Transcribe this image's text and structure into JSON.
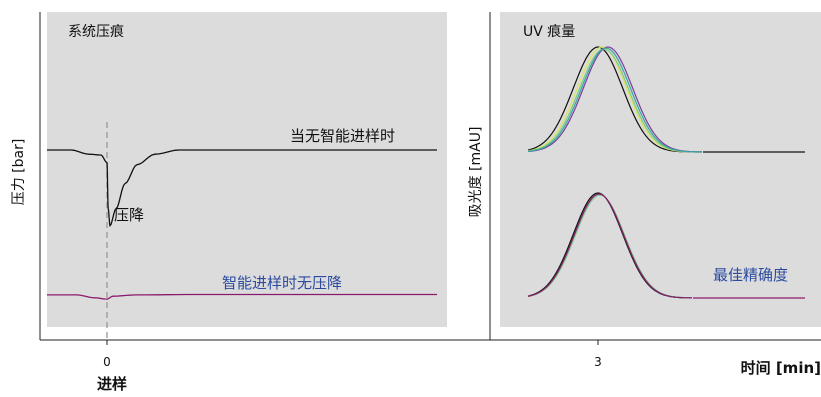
{
  "colors": {
    "panel_bg": "#dcdcdc",
    "axis": "#222222",
    "trace_black": "#111111",
    "trace_purple": "#8b1a6e",
    "annotation_blue": "#2b4aa0",
    "dashed_line": "#999999",
    "overlay_green": "#2f9a6a",
    "overlay_yellow": "#d9e65a",
    "overlay_violet": "#7b3fa0",
    "overlay_lightgreen": "#7fc98a",
    "overlay_teal": "#3aa6a0"
  },
  "chart_data": [
    {
      "type": "line",
      "title": "系统压痕",
      "ylabel": "压力 [bar]",
      "xlabel": "进样",
      "x_ticks": [
        "0"
      ],
      "series": [
        {
          "name": "当无智能进样时",
          "color": "#111111",
          "points": [
            [
              -1.0,
              0
            ],
            [
              -0.6,
              0
            ],
            [
              -0.3,
              -0.1
            ],
            [
              -0.1,
              -0.12
            ],
            [
              0.0,
              -0.3
            ],
            [
              0.02,
              -1.4
            ],
            [
              0.05,
              -1.8
            ],
            [
              0.15,
              -1.4
            ],
            [
              0.3,
              -0.8
            ],
            [
              0.5,
              -0.35
            ],
            [
              0.8,
              -0.1
            ],
            [
              1.2,
              0
            ],
            [
              5.5,
              0
            ]
          ]
        },
        {
          "name": "智能进样时无压降",
          "color": "#8b1a6e",
          "points": [
            [
              -1.0,
              -3.45
            ],
            [
              -0.5,
              -3.45
            ],
            [
              -0.2,
              -3.52
            ],
            [
              0.0,
              -3.55
            ],
            [
              0.1,
              -3.48
            ],
            [
              0.5,
              -3.45
            ],
            [
              1.5,
              -3.44
            ],
            [
              5.5,
              -3.44
            ]
          ]
        }
      ],
      "annotations": [
        {
          "text": "当无智能进样时"
        },
        {
          "text": "压降"
        },
        {
          "text": "智能进样时无压降"
        }
      ]
    },
    {
      "type": "line",
      "title": "UV 痕量",
      "ylabel": "吸光度 [mAU]",
      "xlabel": "时间 [min]",
      "x_ticks": [
        "3"
      ],
      "groups": [
        {
          "label": "",
          "overlays": [
            {
              "color": "#111111",
              "center": 3.0,
              "width": 0.35,
              "height": 1.0
            },
            {
              "color": "#d9e65a",
              "center": 3.04,
              "width": 0.35,
              "height": 1.0
            },
            {
              "color": "#7fc98a",
              "center": 3.06,
              "width": 0.35,
              "height": 0.98
            },
            {
              "color": "#7b3fa0",
              "center": 3.1,
              "width": 0.35,
              "height": 1.0
            },
            {
              "color": "#3aa6a0",
              "center": 3.08,
              "width": 0.35,
              "height": 0.99
            }
          ]
        },
        {
          "label": "最佳精确度",
          "overlays": [
            {
              "color": "#111111",
              "center": 3.0,
              "width": 0.35,
              "height": 1.0
            },
            {
              "color": "#2f9a6a",
              "center": 3.01,
              "width": 0.35,
              "height": 0.99
            },
            {
              "color": "#7fc98a",
              "center": 3.02,
              "width": 0.35,
              "height": 0.98
            },
            {
              "color": "#8b1a6e",
              "center": 3.01,
              "width": 0.35,
              "height": 0.99
            }
          ]
        }
      ],
      "annotations": [
        {
          "text": "最佳精确度"
        }
      ]
    }
  ]
}
